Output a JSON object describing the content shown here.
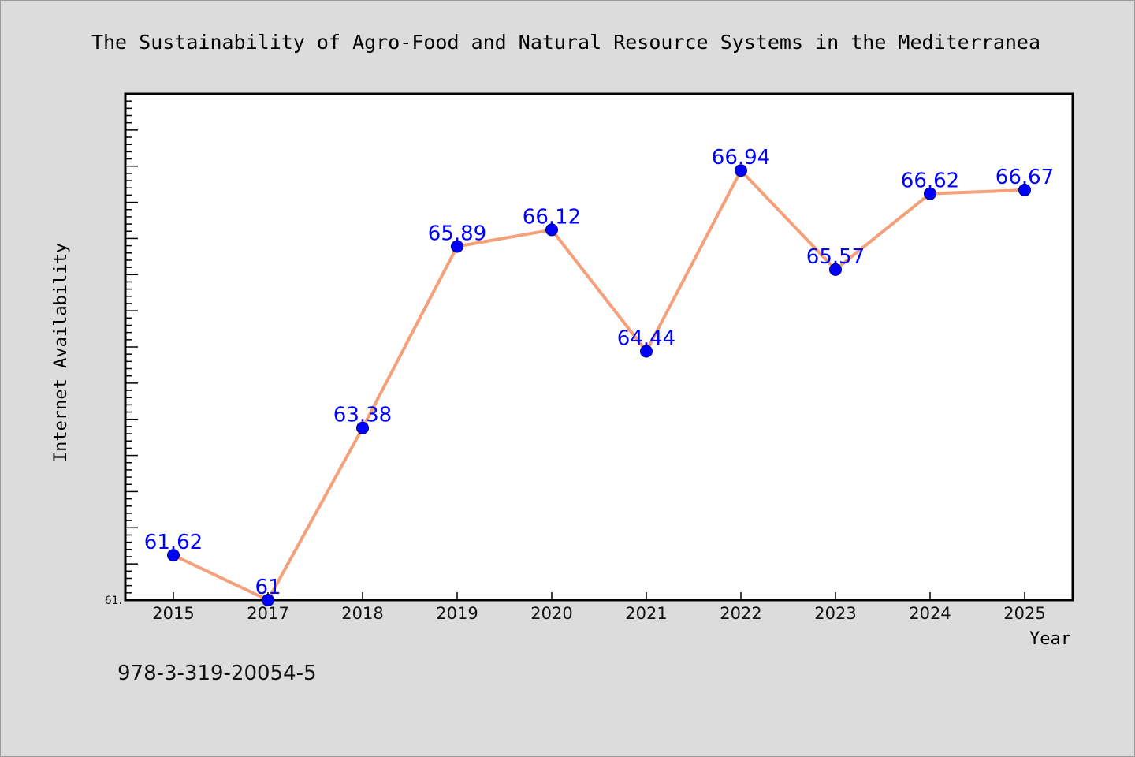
{
  "chart_data": {
    "type": "line",
    "title": "The Sustainability of Agro-Food and Natural Resource Systems in the Mediterranea",
    "xlabel": "Year",
    "ylabel": "Internet Availability",
    "categories": [
      "2015",
      "2017",
      "2018",
      "2019",
      "2020",
      "2021",
      "2022",
      "2023",
      "2024",
      "2025"
    ],
    "series": [
      {
        "values": [
          61.62,
          61,
          63.38,
          65.89,
          66.12,
          64.44,
          66.94,
          65.57,
          66.62,
          66.67
        ],
        "labels": [
          "61.62",
          "61",
          "63.38",
          "65.89",
          "66.12",
          "64.44",
          "66.94",
          "65.57",
          "66.62",
          "66.67"
        ]
      }
    ],
    "ylim": [
      61,
      68
    ],
    "y_tick_labels": [
      "61."
    ],
    "line_color": "#f4a07a",
    "marker_color": "#0000ff",
    "label_color": "#0000ff",
    "grid": false,
    "legend": "none"
  },
  "footnote": "978-3-319-20054-5"
}
